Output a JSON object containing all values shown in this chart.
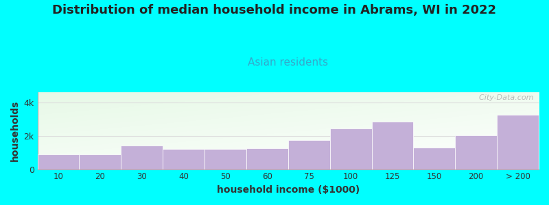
{
  "title": "Distribution of median household income in Abrams, WI in 2022",
  "subtitle": "Asian residents",
  "xlabel": "household income ($1000)",
  "ylabel": "households",
  "background_color": "#00FFFF",
  "bar_color": "#c4b0d8",
  "bar_edge_color": "#c4b0d8",
  "categories": [
    "10",
    "20",
    "30",
    "40",
    "50",
    "60",
    "75",
    "100",
    "125",
    "150",
    "200",
    "> 200"
  ],
  "values": [
    900,
    880,
    1420,
    1200,
    1190,
    1260,
    1720,
    2420,
    2820,
    1300,
    2020,
    3230
  ],
  "ylim": [
    0,
    4600
  ],
  "yticks": [
    0,
    2000,
    4000
  ],
  "ytick_labels": [
    "0",
    "2k",
    "4k"
  ],
  "title_fontsize": 13,
  "subtitle_fontsize": 11,
  "axis_label_fontsize": 10,
  "watermark": "  City-Data.com"
}
